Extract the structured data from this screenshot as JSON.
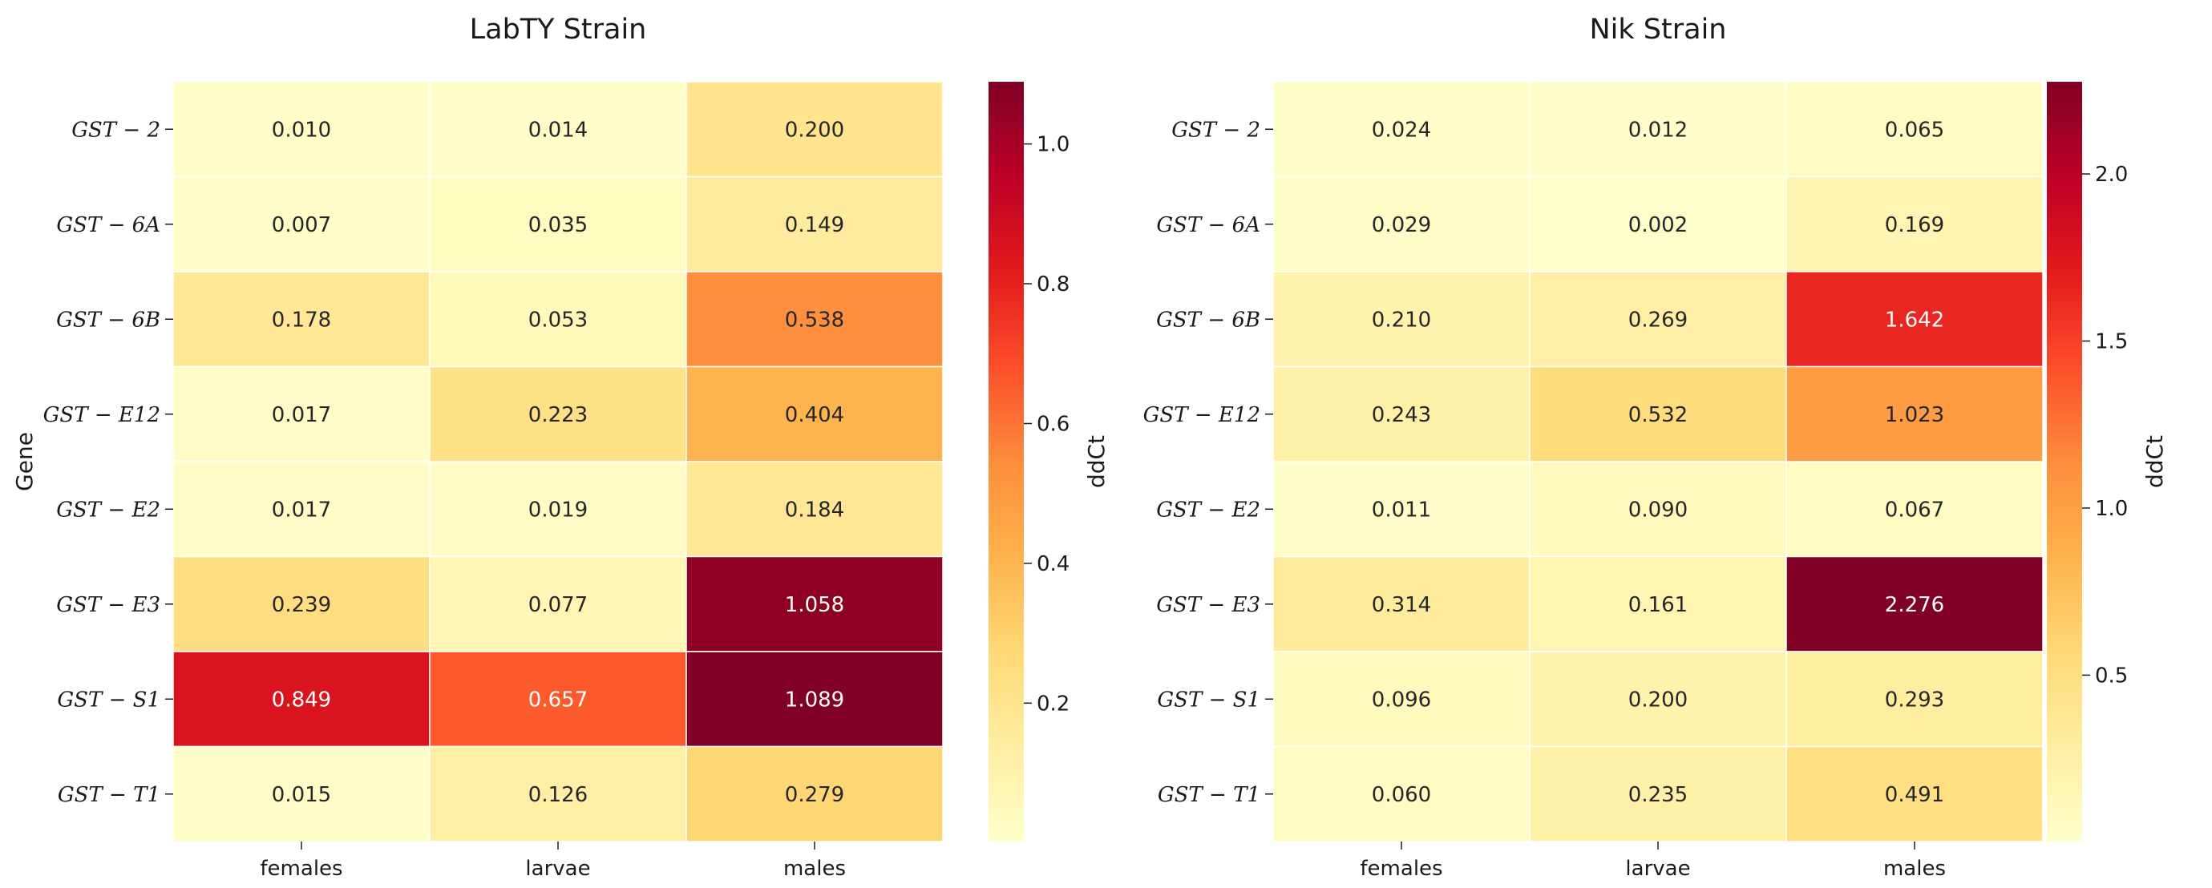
{
  "chart_data": [
    {
      "type": "heatmap",
      "title": "LabTY Strain",
      "ylabel": "Gene",
      "colorbar_label": "ddCt",
      "columns": [
        "females",
        "larvae",
        "males"
      ],
      "rows": [
        {
          "id": "2",
          "prefix": "GST",
          "sep": " − ",
          "suffix": "2"
        },
        {
          "id": "6A",
          "prefix": "GST",
          "sep": " − ",
          "suffix": "6A"
        },
        {
          "id": "6B",
          "prefix": "GST",
          "sep": " − ",
          "suffix": "6B"
        },
        {
          "id": "E12",
          "prefix": "GST",
          "sep": " − ",
          "suffix": "E12"
        },
        {
          "id": "E2",
          "prefix": "GST",
          "sep": " − ",
          "suffix": "E2"
        },
        {
          "id": "E3",
          "prefix": "GST",
          "sep": " − ",
          "suffix": "E3"
        },
        {
          "id": "S1",
          "prefix": "GST",
          "sep": " − ",
          "suffix": "S1"
        },
        {
          "id": "T1",
          "prefix": "GST",
          "sep": " − ",
          "suffix": "T1"
        }
      ],
      "values": [
        [
          0.01,
          0.014,
          0.2
        ],
        [
          0.007,
          0.035,
          0.149
        ],
        [
          0.178,
          0.053,
          0.538
        ],
        [
          0.017,
          0.223,
          0.404
        ],
        [
          0.017,
          0.019,
          0.184
        ],
        [
          0.239,
          0.077,
          1.058
        ],
        [
          0.849,
          0.657,
          1.089
        ],
        [
          0.015,
          0.126,
          0.279
        ]
      ],
      "labels": [
        [
          "0.010",
          "0.014",
          "0.200"
        ],
        [
          "0.007",
          "0.035",
          "0.149"
        ],
        [
          "0.178",
          "0.053",
          "0.538"
        ],
        [
          "0.017",
          "0.223",
          "0.404"
        ],
        [
          "0.017",
          "0.019",
          "0.184"
        ],
        [
          "0.239",
          "0.077",
          "1.058"
        ],
        [
          "0.849",
          "0.657",
          "1.089"
        ],
        [
          "0.015",
          "0.126",
          "0.279"
        ]
      ],
      "vmin": 0.002,
      "vmax": 1.089,
      "colorbar_ticks": [
        0.2,
        0.4,
        0.6,
        0.8,
        1.0
      ],
      "colorbar_tick_labels": [
        "0.2",
        "0.4",
        "0.6",
        "0.8",
        "1.0"
      ]
    },
    {
      "type": "heatmap",
      "title": "Nik Strain",
      "ylabel": "",
      "colorbar_label": "ddCt",
      "columns": [
        "females",
        "larvae",
        "males"
      ],
      "rows": [
        {
          "id": "2",
          "prefix": "GST",
          "sep": " − ",
          "suffix": "2"
        },
        {
          "id": "6A",
          "prefix": "GST",
          "sep": " − ",
          "suffix": "6A"
        },
        {
          "id": "6B",
          "prefix": "GST",
          "sep": " − ",
          "suffix": "6B"
        },
        {
          "id": "E12",
          "prefix": "GST",
          "sep": " − ",
          "suffix": "E12"
        },
        {
          "id": "E2",
          "prefix": "GST",
          "sep": " − ",
          "suffix": "E2"
        },
        {
          "id": "E3",
          "prefix": "GST",
          "sep": " − ",
          "suffix": "E3"
        },
        {
          "id": "S1",
          "prefix": "GST",
          "sep": " − ",
          "suffix": "S1"
        },
        {
          "id": "T1",
          "prefix": "GST",
          "sep": " − ",
          "suffix": "T1"
        }
      ],
      "values": [
        [
          0.024,
          0.012,
          0.065
        ],
        [
          0.029,
          0.002,
          0.169
        ],
        [
          0.21,
          0.269,
          1.642
        ],
        [
          0.243,
          0.532,
          1.023
        ],
        [
          0.011,
          0.09,
          0.067
        ],
        [
          0.314,
          0.161,
          2.276
        ],
        [
          0.096,
          0.2,
          0.293
        ],
        [
          0.06,
          0.235,
          0.491
        ]
      ],
      "labels": [
        [
          "0.024",
          "0.012",
          "0.065"
        ],
        [
          "0.029",
          "0.002",
          "0.169"
        ],
        [
          "0.210",
          "0.269",
          "1.642"
        ],
        [
          "0.243",
          "0.532",
          "1.023"
        ],
        [
          "0.011",
          "0.090",
          "0.067"
        ],
        [
          "0.314",
          "0.161",
          "2.276"
        ],
        [
          "0.096",
          "0.200",
          "0.293"
        ],
        [
          "0.060",
          "0.235",
          "0.491"
        ]
      ],
      "vmin": 0.002,
      "vmax": 2.276,
      "colorbar_ticks": [
        0.5,
        1.0,
        1.5,
        2.0
      ],
      "colorbar_tick_labels": [
        "0.5",
        "1.0",
        "1.5",
        "2.0"
      ]
    }
  ],
  "colormap": {
    "name": "YlOrRd",
    "stops": [
      "#ffffcc",
      "#ffeda0",
      "#fed976",
      "#feb24c",
      "#fd8d3c",
      "#fc4e2a",
      "#e31a1c",
      "#bd0026",
      "#800026"
    ]
  }
}
